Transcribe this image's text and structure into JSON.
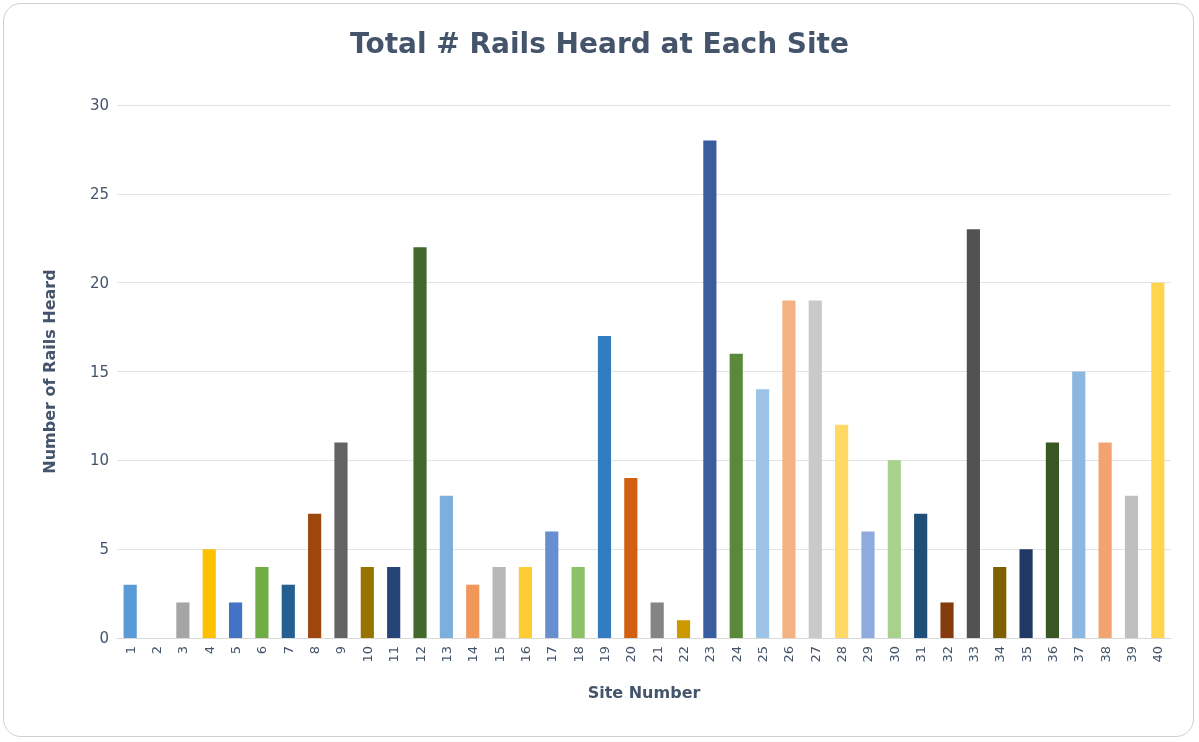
{
  "chart_data": {
    "type": "bar",
    "title": "Total # Rails Heard at Each Site",
    "xlabel": "Site Number",
    "ylabel": "Number of Rails Heard",
    "categories": [
      "1",
      "2",
      "3",
      "4",
      "5",
      "6",
      "7",
      "8",
      "9",
      "10",
      "11",
      "12",
      "13",
      "14",
      "15",
      "16",
      "17",
      "18",
      "19",
      "20",
      "21",
      "22",
      "23",
      "24",
      "25",
      "26",
      "27",
      "28",
      "29",
      "30",
      "31",
      "32",
      "33",
      "34",
      "35",
      "36",
      "37",
      "38",
      "39",
      "40"
    ],
    "values": [
      3,
      0,
      2,
      5,
      2,
      4,
      3,
      7,
      11,
      4,
      4,
      22,
      8,
      3,
      4,
      4,
      6,
      4,
      17,
      9,
      2,
      1,
      28,
      16,
      14,
      19,
      19,
      12,
      6,
      10,
      7,
      2,
      23,
      4,
      5,
      11,
      15,
      11,
      8,
      20
    ],
    "colors": [
      "#5b9bd5",
      "#ed7d31",
      "#a5a5a5",
      "#ffc000",
      "#4472c4",
      "#70ad47",
      "#255e91",
      "#9e480e",
      "#636363",
      "#997300",
      "#264478",
      "#43682b",
      "#7cafdd",
      "#f1975a",
      "#b7b7b7",
      "#ffcd33",
      "#698ed0",
      "#8cc168",
      "#327dc2",
      "#d26012",
      "#848484",
      "#cc9a00",
      "#3a5da0",
      "#5a8a39",
      "#9dc3e6",
      "#f4b183",
      "#c9c9c9",
      "#ffd966",
      "#8faadc",
      "#a9d18e",
      "#1f4e79",
      "#843c0c",
      "#525252",
      "#7f6000",
      "#203864",
      "#385723",
      "#8bb7e0",
      "#f3a36f",
      "#bfbfbf",
      "#ffd54f"
    ],
    "ylim": [
      0,
      30
    ],
    "yticks": [
      0,
      5,
      10,
      15,
      20,
      25,
      30
    ],
    "grid": "y"
  }
}
